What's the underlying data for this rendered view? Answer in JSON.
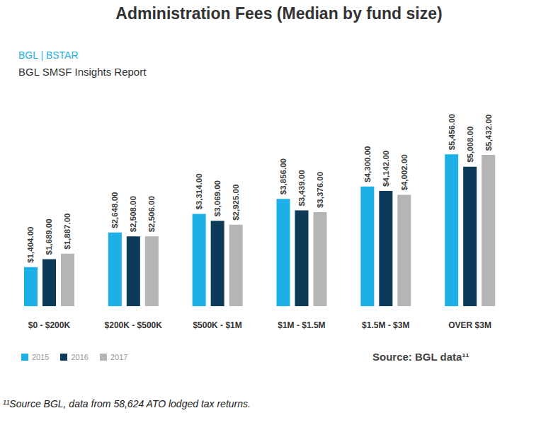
{
  "chart_data": {
    "type": "bar",
    "title": "Administration Fees (Median by fund size)",
    "subtitle": [
      "BGL | BSTAR",
      "BGL SMSF Insights Report"
    ],
    "source": "Source: BGL data¹¹",
    "footnote": "¹¹Source BGL, data from 58,624 ATO lodged tax returns.",
    "categories": [
      "$0 - $200K",
      "$200K - $500K",
      "$500K - $1M",
      "$1M - $1.5M",
      "$1.5M - $3M",
      "OVER $3M"
    ],
    "series": [
      {
        "name": "2015",
        "color": "#1cb0e6",
        "values": [
          1404,
          2648,
          3314,
          3856,
          4300,
          5456
        ],
        "value_labels": [
          "$1,404.00",
          "$2,648.00",
          "$3,314.00",
          "$3,856.00",
          "$4,300.00",
          "$5,456.00"
        ]
      },
      {
        "name": "2016",
        "color": "#0e3a5a",
        "values": [
          1689,
          2508,
          3069,
          3439,
          4142,
          5008
        ],
        "value_labels": [
          "$1,689.00",
          "$2,508.00",
          "$3,069.00",
          "$3,439.00",
          "$4,142.00",
          "$5,008.00"
        ]
      },
      {
        "name": "2017",
        "color": "#b5b5b5",
        "values": [
          1887,
          2506,
          2925,
          3376,
          4002,
          5432
        ],
        "value_labels": [
          "$1,887.00",
          "$2,506.00",
          "$2,925.00",
          "$3,376.00",
          "$4,002.00",
          "$5,432.00"
        ]
      }
    ],
    "ylim": [
      0,
      8000
    ],
    "tick_labels": "x",
    "data_labels": true,
    "legend": "bottom left",
    "grid": false
  }
}
